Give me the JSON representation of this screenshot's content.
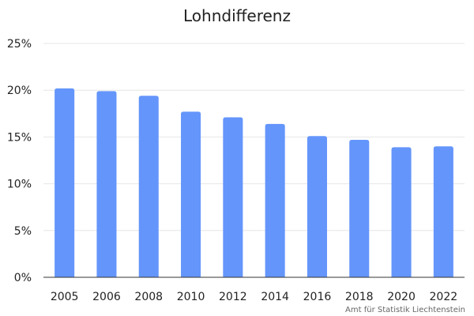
{
  "chart_data": {
    "type": "bar",
    "title": "Lohndifferenz",
    "categories": [
      "2005",
      "2006",
      "2008",
      "2010",
      "2012",
      "2014",
      "2016",
      "2018",
      "2020",
      "2022"
    ],
    "series": [
      {
        "values": [
          20.2,
          19.9,
          19.4,
          17.7,
          17.1,
          16.4,
          15.1,
          14.7,
          13.9,
          14.0
        ]
      }
    ],
    "y_ticks": [
      "0%",
      "5%",
      "10%",
      "15%",
      "20%",
      "25%"
    ],
    "ylim": [
      0,
      25
    ],
    "grid": true,
    "legend": "none",
    "bar_color": "#6495fb",
    "grid_color": "#e6e6e6",
    "axis_color": "#333333"
  },
  "source_note": "Amt für Statistik Liechtenstein"
}
